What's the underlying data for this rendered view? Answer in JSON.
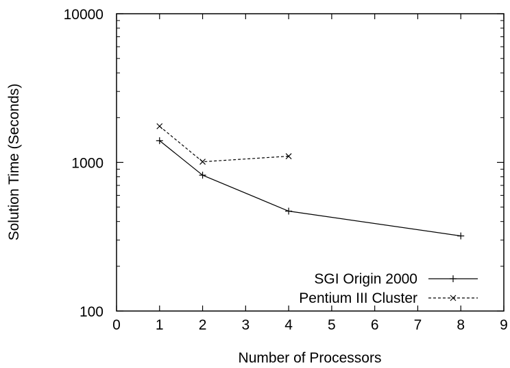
{
  "chart_data": {
    "type": "line",
    "xlabel": "Number of Processors",
    "ylabel": "Solution Time (Seconds)",
    "xlim": [
      0,
      9
    ],
    "ylim": [
      100,
      10000
    ],
    "yscale": "log",
    "xticks": [
      0,
      1,
      2,
      3,
      4,
      5,
      6,
      7,
      8,
      9
    ],
    "yticks": [
      100,
      1000,
      10000
    ],
    "xtick_labels": [
      "0",
      "1",
      "2",
      "3",
      "4",
      "5",
      "6",
      "7",
      "8",
      "9"
    ],
    "ytick_labels": [
      "100",
      "1000",
      "10000"
    ],
    "grid": false,
    "legend_position": "bottom-right",
    "series": [
      {
        "name": "SGI Origin 2000",
        "x": [
          1,
          2,
          4,
          8
        ],
        "y": [
          1400,
          820,
          470,
          320
        ],
        "marker": "plus",
        "line_style": "solid"
      },
      {
        "name": "Pentium III Cluster",
        "x": [
          1,
          2,
          4
        ],
        "y": [
          1750,
          1010,
          1100
        ],
        "marker": "cross",
        "line_style": "dashed"
      }
    ]
  }
}
